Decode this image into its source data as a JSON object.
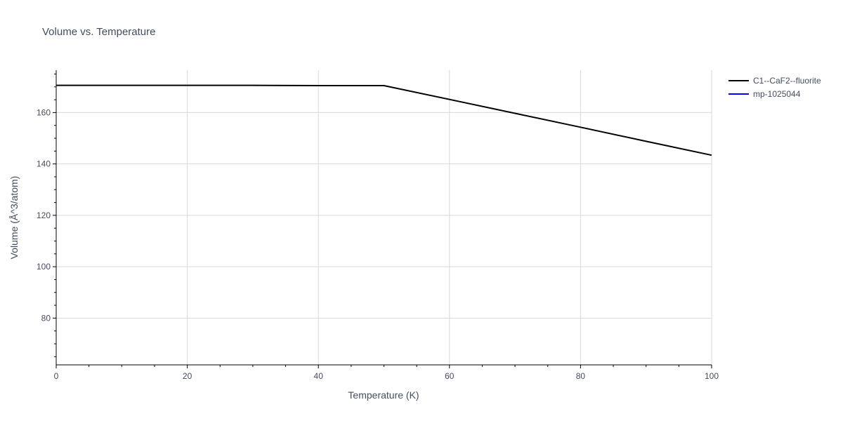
{
  "chart_data": {
    "type": "line",
    "title": "Volume vs. Temperature",
    "xlabel": "Temperature (K)",
    "ylabel": "Volume (Å^3/atom)",
    "xlim": [
      0,
      100
    ],
    "ylim": [
      61.8,
      176.5
    ],
    "xticks": [
      0,
      20,
      40,
      60,
      80,
      100
    ],
    "yticks": [
      80,
      100,
      120,
      140,
      160
    ],
    "grid": true,
    "legend_position": "top-right",
    "series": [
      {
        "name": "C1--CaF2--fluorite",
        "color": "#000000",
        "x": [
          0,
          10,
          20,
          30,
          40,
          50,
          60,
          70,
          80,
          90,
          100
        ],
        "y": [
          170.6,
          170.6,
          170.6,
          170.6,
          170.5,
          170.5,
          165.1,
          159.7,
          154.3,
          148.8,
          143.4
        ]
      },
      {
        "name": "mp-1025044",
        "color": "#0000ff",
        "x": [],
        "y": []
      }
    ]
  }
}
